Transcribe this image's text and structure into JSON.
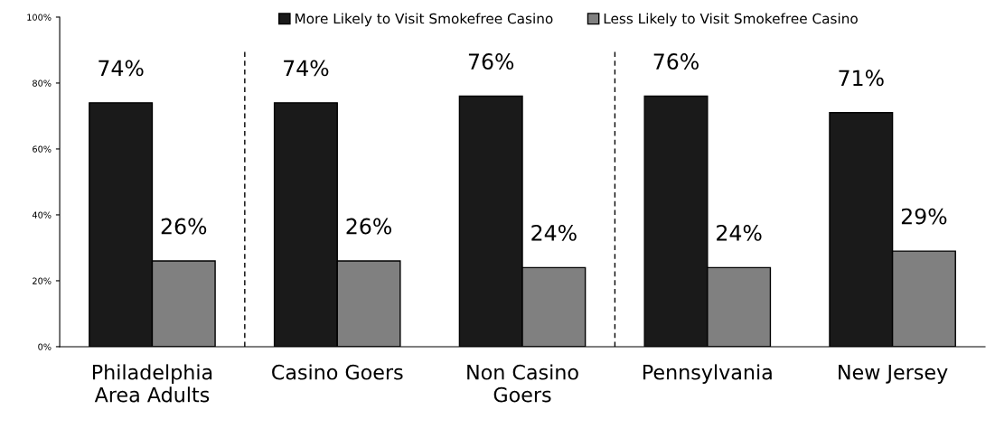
{
  "chart_data": {
    "type": "bar",
    "categories": [
      "Philadelphia\nArea Adults",
      "Casino Goers",
      "Non Casino\nGoers",
      "Pennsylvania",
      "New Jersey"
    ],
    "series": [
      {
        "name": "More Likely to Visit Smokefree Casino",
        "color": "#1a1a1a",
        "values": [
          74,
          74,
          76,
          76,
          71
        ],
        "value_labels": [
          "74%",
          "74%",
          "76%",
          "76%",
          "71%"
        ]
      },
      {
        "name": "Less Likely to Visit Smokefree Casino",
        "color": "#808080",
        "values": [
          26,
          26,
          24,
          24,
          29
        ],
        "value_labels": [
          "26%",
          "26%",
          "24%",
          "24%",
          "29%"
        ]
      }
    ],
    "ylim": [
      0,
      100
    ],
    "yticks": [
      {
        "value": 0,
        "label": "0%"
      },
      {
        "value": 20,
        "label": "20%"
      },
      {
        "value": 40,
        "label": "40%"
      },
      {
        "value": 60,
        "label": "60%"
      },
      {
        "value": 80,
        "label": "80%"
      },
      {
        "value": 100,
        "label": "100%"
      }
    ],
    "grid": false,
    "legend": "top"
  }
}
